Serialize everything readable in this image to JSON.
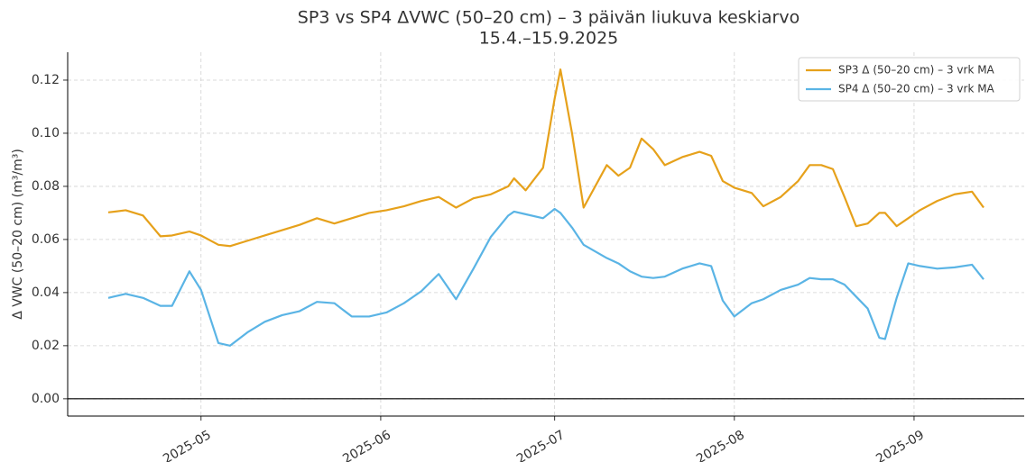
{
  "chart_data": {
    "type": "line",
    "title": "SP3 vs SP4 ΔVWC (50–20 cm) – 3 päivän liukuva keskiarvo",
    "subtitle": "15.4.–15.9.2025",
    "ylabel": "Δ VWC (50–20 cm) (m³/m³)",
    "x": [
      "2025-04-15",
      "2025-04-18",
      "2025-04-21",
      "2025-04-24",
      "2025-04-26",
      "2025-04-29",
      "2025-05-01",
      "2025-05-04",
      "2025-05-06",
      "2025-05-09",
      "2025-05-12",
      "2025-05-15",
      "2025-05-18",
      "2025-05-21",
      "2025-05-24",
      "2025-05-27",
      "2025-05-30",
      "2025-06-02",
      "2025-06-05",
      "2025-06-08",
      "2025-06-11",
      "2025-06-14",
      "2025-06-17",
      "2025-06-20",
      "2025-06-23",
      "2025-06-24",
      "2025-06-26",
      "2025-06-29",
      "2025-07-01",
      "2025-07-02",
      "2025-07-04",
      "2025-07-06",
      "2025-07-10",
      "2025-07-12",
      "2025-07-14",
      "2025-07-16",
      "2025-07-18",
      "2025-07-20",
      "2025-07-23",
      "2025-07-26",
      "2025-07-28",
      "2025-07-30",
      "2025-08-01",
      "2025-08-04",
      "2025-08-06",
      "2025-08-09",
      "2025-08-12",
      "2025-08-14",
      "2025-08-16",
      "2025-08-18",
      "2025-08-20",
      "2025-08-22",
      "2025-08-24",
      "2025-08-26",
      "2025-08-27",
      "2025-08-29",
      "2025-08-31",
      "2025-09-02",
      "2025-09-05",
      "2025-09-08",
      "2025-09-11",
      "2025-09-13"
    ],
    "series": [
      {
        "name": "SP3 Δ (50–20 cm) – 3 vrk MA",
        "color": "#e6a11b",
        "values": [
          0.0702,
          0.071,
          0.069,
          0.0612,
          0.0615,
          0.063,
          0.0615,
          0.058,
          0.0575,
          0.0595,
          0.0615,
          0.0635,
          0.0655,
          0.068,
          0.066,
          0.068,
          0.07,
          0.071,
          0.0725,
          0.0745,
          0.076,
          0.072,
          0.0755,
          0.077,
          0.08,
          0.083,
          0.0785,
          0.087,
          0.113,
          0.124,
          0.1,
          0.072,
          0.088,
          0.084,
          0.087,
          0.098,
          0.094,
          0.088,
          0.091,
          0.093,
          0.0915,
          0.082,
          0.0795,
          0.0775,
          0.0725,
          0.076,
          0.082,
          0.088,
          0.088,
          0.0865,
          0.076,
          0.065,
          0.066,
          0.07,
          0.07,
          0.065,
          0.068,
          0.071,
          0.0745,
          0.077,
          0.078,
          0.072
        ]
      },
      {
        "name": "SP4 Δ (50–20 cm) – 3 vrk MA",
        "color": "#5ab4e5",
        "values": [
          0.038,
          0.0395,
          0.038,
          0.035,
          0.035,
          0.048,
          0.041,
          0.021,
          0.02,
          0.025,
          0.029,
          0.0315,
          0.033,
          0.0365,
          0.036,
          0.031,
          0.031,
          0.0325,
          0.036,
          0.0405,
          0.047,
          0.0375,
          0.049,
          0.061,
          0.069,
          0.0705,
          0.0695,
          0.068,
          0.0715,
          0.07,
          0.0645,
          0.058,
          0.053,
          0.051,
          0.048,
          0.046,
          0.0455,
          0.046,
          0.049,
          0.051,
          0.05,
          0.037,
          0.031,
          0.036,
          0.0375,
          0.041,
          0.043,
          0.0455,
          0.045,
          0.045,
          0.043,
          0.0385,
          0.034,
          0.023,
          0.0225,
          0.038,
          0.051,
          0.05,
          0.049,
          0.0495,
          0.0505,
          0.045
        ]
      }
    ],
    "xlim": [
      "2025-04-08",
      "2025-09-20"
    ],
    "xticks": [
      {
        "value": "2025-05-01",
        "label": "2025-05"
      },
      {
        "value": "2025-06-01",
        "label": "2025-06"
      },
      {
        "value": "2025-07-01",
        "label": "2025-07"
      },
      {
        "value": "2025-08-01",
        "label": "2025-08"
      },
      {
        "value": "2025-09-01",
        "label": "2025-09"
      }
    ],
    "ylim": [
      -0.0065,
      0.1305
    ],
    "yticks": [
      {
        "value": 0,
        "label": "0.00"
      },
      {
        "value": 0.02,
        "label": "0.02"
      },
      {
        "value": 0.04,
        "label": "0.04"
      },
      {
        "value": 0.06,
        "label": "0.06"
      },
      {
        "value": 0.08,
        "label": "0.08"
      },
      {
        "value": 0.1,
        "label": "0.10"
      },
      {
        "value": 0.12,
        "label": "0.12"
      }
    ],
    "reference_line": 0,
    "grid": true,
    "legend": "upper right"
  }
}
